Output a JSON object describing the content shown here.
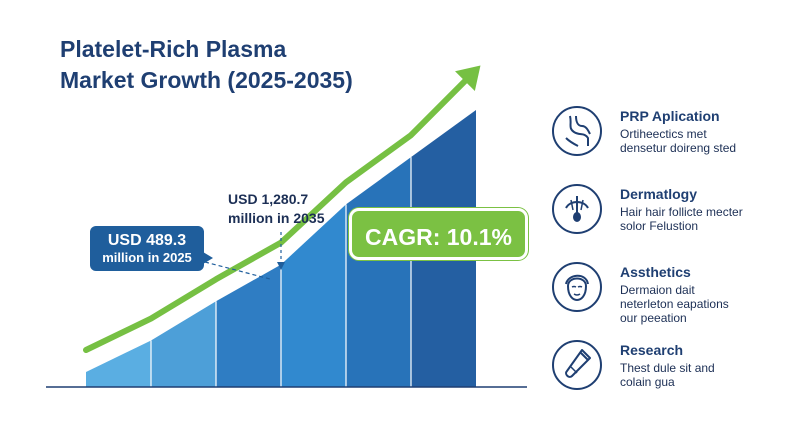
{
  "title": {
    "line1": "Platelet-Rich Plasma",
    "line2": "Market Growth (2025-2035)"
  },
  "chart_data": {
    "type": "area",
    "x": [
      1,
      2,
      3,
      4,
      5,
      6,
      7
    ],
    "values": [
      0,
      0.12,
      0.27,
      0.41,
      0.64,
      0.82,
      1.0
    ],
    "color": "#2e7fc4",
    "colors": [
      "#5aaee2",
      "#4d9fd8",
      "#2f7dc3",
      "#3189cf",
      "#2873b9",
      "#245fa2",
      "#2a5d9c"
    ],
    "trend_color": "#76c043",
    "callout_start": {
      "amount": "USD 489.3",
      "label": "million in 2025"
    },
    "callout_end": {
      "amount": "USD 1,280.7",
      "label": "million in 2035"
    },
    "badge": "CAGR: 10.1%"
  },
  "sidebar": {
    "items": [
      {
        "icon": "knee-joint-icon",
        "title": "PRP Aplication",
        "desc": [
          "Ortiheectics met",
          "densetur doireng sted"
        ]
      },
      {
        "icon": "hair-follicle-icon",
        "title": "Dermatlogy",
        "desc": [
          "Hair hair follicte mecter",
          "solor Felustion"
        ]
      },
      {
        "icon": "face-icon",
        "title": "Assthetics",
        "desc": [
          "Dermaion dait",
          "neterleton eapations",
          "our peeation"
        ]
      },
      {
        "icon": "test-tube-icon",
        "title": "Research",
        "desc": [
          "Thest dule sit and",
          "colain gua"
        ]
      }
    ]
  }
}
